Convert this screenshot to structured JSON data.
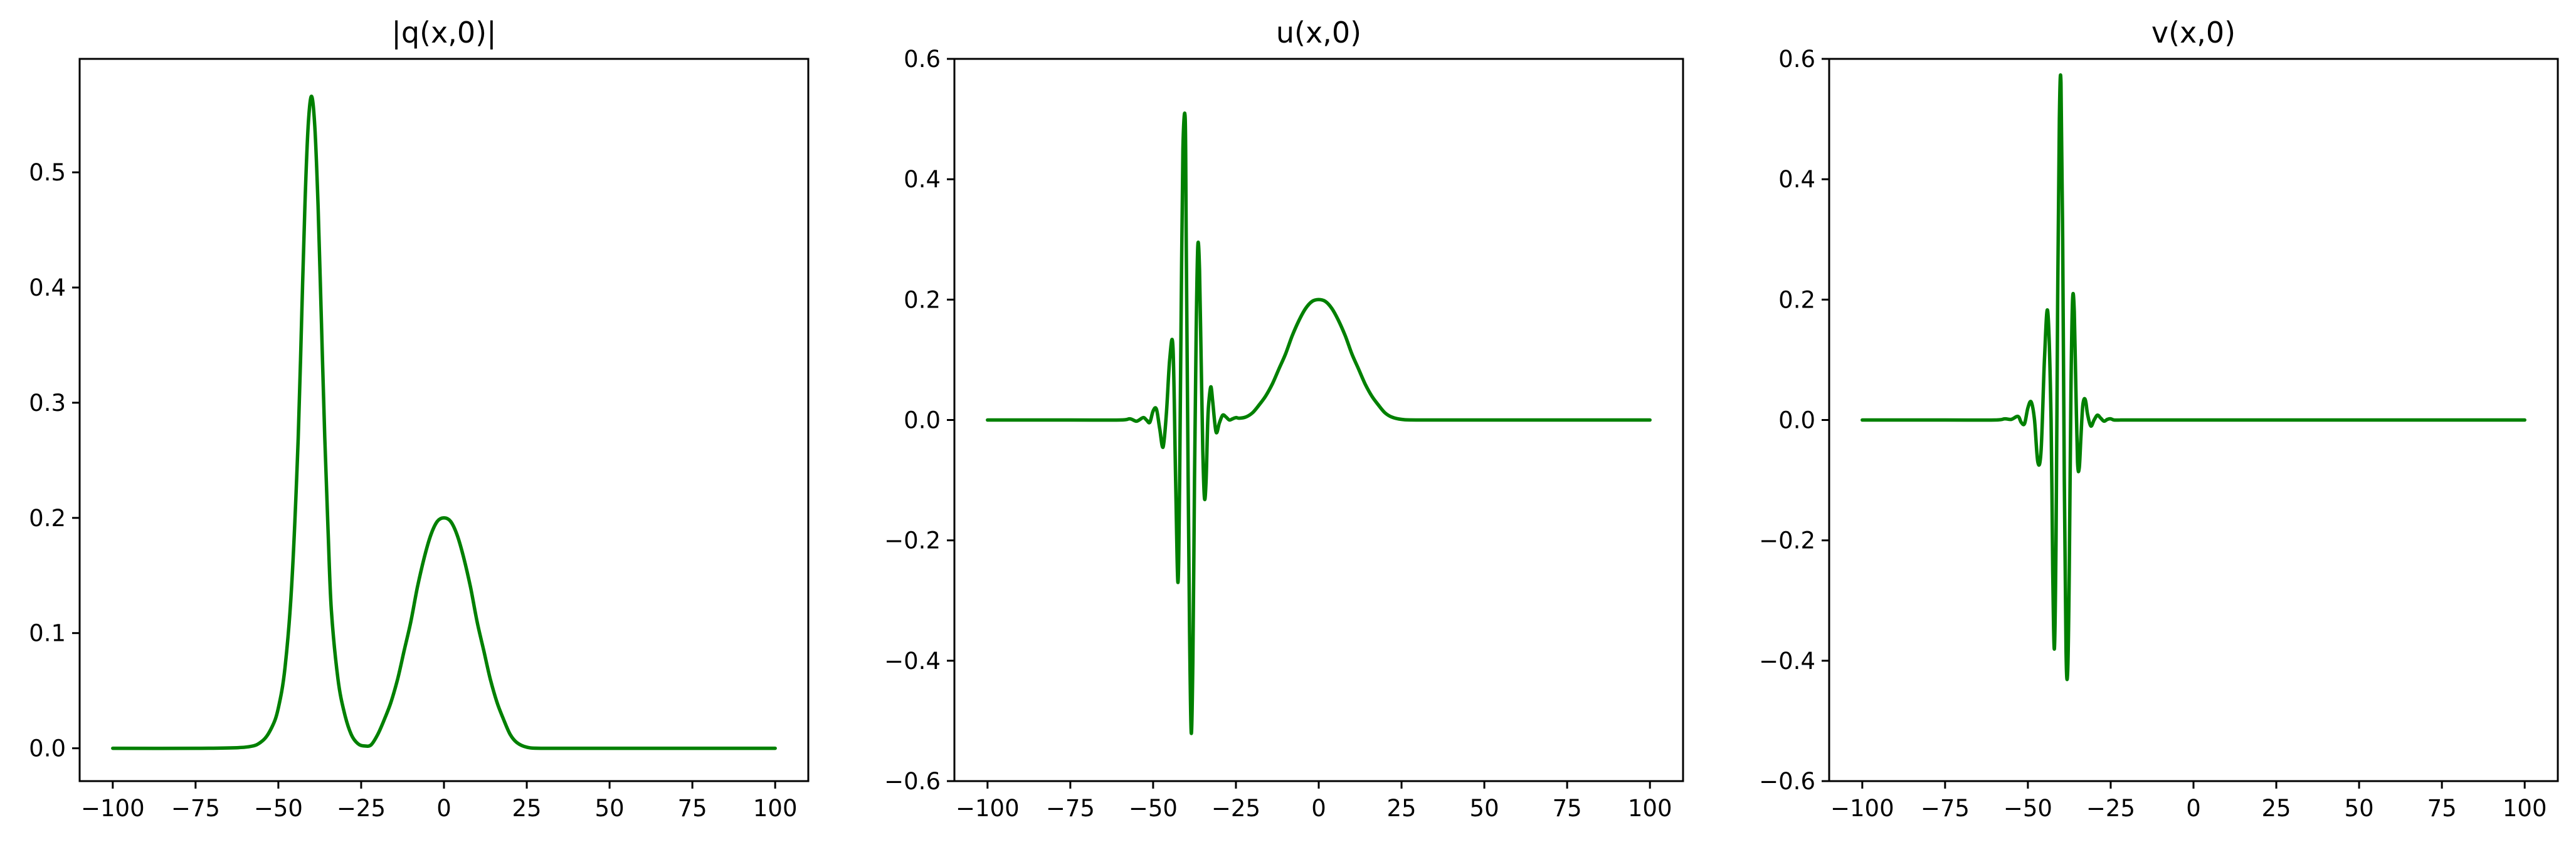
{
  "chart_data": [
    {
      "type": "line",
      "title": "|q(x,0)|",
      "xlabel": "",
      "ylabel": "",
      "xlim": [
        -110,
        110
      ],
      "ylim": [
        -0.0285,
        0.5985
      ],
      "xticks": [
        -100,
        -75,
        -50,
        -25,
        0,
        25,
        50,
        75,
        100
      ],
      "yticks": [
        0.0,
        0.1,
        0.2,
        0.3,
        0.4,
        0.5
      ],
      "grid": false,
      "color": "#008000",
      "series": [
        {
          "x": [
            -100,
            -75,
            -60,
            -55,
            -52,
            -50,
            -48,
            -46,
            -44,
            -43,
            -42,
            -41,
            -40,
            -39,
            -38,
            -37,
            -36,
            -35,
            -34,
            -32,
            -30,
            -28,
            -26,
            -24,
            -22,
            -20,
            -18,
            -16,
            -14,
            -12,
            -10,
            -8,
            -6,
            -4,
            -2,
            0,
            2,
            4,
            6,
            8,
            10,
            12,
            14,
            16,
            18,
            20,
            22,
            25,
            30,
            50,
            75,
            100
          ],
          "y": [
            0.0,
            0.0,
            0.001,
            0.006,
            0.018,
            0.035,
            0.07,
            0.14,
            0.27,
            0.37,
            0.47,
            0.54,
            0.566,
            0.54,
            0.47,
            0.37,
            0.27,
            0.19,
            0.12,
            0.06,
            0.03,
            0.012,
            0.004,
            0.002,
            0.003,
            0.012,
            0.025,
            0.04,
            0.06,
            0.085,
            0.11,
            0.14,
            0.165,
            0.185,
            0.197,
            0.2,
            0.197,
            0.185,
            0.165,
            0.14,
            0.11,
            0.085,
            0.06,
            0.04,
            0.025,
            0.012,
            0.005,
            0.001,
            0.0,
            0.0,
            0.0,
            0.0
          ]
        }
      ]
    },
    {
      "type": "line",
      "title": "u(x,0)",
      "xlabel": "",
      "ylabel": "",
      "xlim": [
        -110,
        110
      ],
      "ylim": [
        -0.6,
        0.6
      ],
      "xticks": [
        -100,
        -75,
        -50,
        -25,
        0,
        25,
        50,
        75,
        100
      ],
      "yticks": [
        -0.6,
        -0.4,
        -0.2,
        0.0,
        0.2,
        0.4,
        0.6
      ],
      "grid": false,
      "color": "#008000",
      "series": [
        {
          "x": [
            -100,
            -75,
            -60,
            -57,
            -55,
            -53,
            -52,
            -51,
            -50,
            -49,
            -48,
            -47,
            -46,
            -45,
            -44,
            -43.2,
            -42.5,
            -42,
            -41.5,
            -41,
            -40.3,
            -40,
            -39.5,
            -39,
            -38.5,
            -38,
            -37.5,
            -37,
            -36.5,
            -36,
            -35.5,
            -35,
            -34.5,
            -34,
            -33.5,
            -33,
            -32.5,
            -32,
            -31,
            -30,
            -29,
            -28,
            -27,
            -26,
            -25,
            -24,
            -22,
            -20,
            -18,
            -16,
            -14,
            -12,
            -10,
            -8,
            -6,
            -4,
            -2,
            0,
            2,
            4,
            6,
            8,
            10,
            12,
            14,
            16,
            18,
            20,
            22,
            25,
            30,
            50,
            75,
            100
          ],
          "y": [
            0.0,
            0.0,
            0.0,
            0.002,
            -0.002,
            0.004,
            0.0,
            -0.004,
            0.015,
            0.018,
            -0.015,
            -0.045,
            0.01,
            0.1,
            0.12,
            -0.1,
            -0.27,
            -0.1,
            0.2,
            0.45,
            0.5,
            0.3,
            -0.05,
            -0.35,
            -0.52,
            -0.4,
            -0.1,
            0.15,
            0.29,
            0.25,
            0.1,
            -0.05,
            -0.13,
            -0.1,
            0.0,
            0.04,
            0.055,
            0.03,
            -0.02,
            -0.005,
            0.008,
            0.005,
            0.0,
            0.002,
            0.004,
            0.003,
            0.005,
            0.012,
            0.025,
            0.04,
            0.06,
            0.085,
            0.11,
            0.14,
            0.165,
            0.185,
            0.197,
            0.2,
            0.197,
            0.185,
            0.165,
            0.14,
            0.11,
            0.085,
            0.06,
            0.04,
            0.025,
            0.012,
            0.005,
            0.001,
            0.0,
            0.0,
            0.0,
            0.0
          ]
        }
      ]
    },
    {
      "type": "line",
      "title": "v(x,0)",
      "xlabel": "",
      "ylabel": "",
      "xlim": [
        -110,
        110
      ],
      "ylim": [
        -0.6,
        0.6
      ],
      "xticks": [
        -100,
        -75,
        -50,
        -25,
        0,
        25,
        50,
        75,
        100
      ],
      "yticks": [
        -0.6,
        -0.4,
        -0.2,
        0.0,
        0.2,
        0.4,
        0.6
      ],
      "grid": false,
      "color": "#008000",
      "series": [
        {
          "x": [
            -100,
            -75,
            -60,
            -57,
            -55,
            -53,
            -52,
            -51,
            -50,
            -49,
            -48,
            -47,
            -46,
            -45,
            -44,
            -43,
            -42.5,
            -42,
            -41.5,
            -41,
            -40.5,
            -40,
            -39.5,
            -39,
            -38.5,
            -38,
            -37.5,
            -37,
            -36.5,
            -36,
            -35.5,
            -35,
            -34.5,
            -34,
            -33.5,
            -33,
            -32.5,
            -32,
            -31,
            -30,
            -29,
            -28,
            -27,
            -26,
            -25,
            -24,
            -22,
            -20,
            0,
            50,
            100
          ],
          "y": [
            0.0,
            0.0,
            0.0,
            0.002,
            0.001,
            0.006,
            -0.004,
            -0.006,
            0.02,
            0.03,
            0.0,
            -0.07,
            -0.05,
            0.1,
            0.18,
            0.0,
            -0.25,
            -0.38,
            -0.2,
            0.2,
            0.5,
            0.56,
            0.3,
            -0.1,
            -0.38,
            -0.42,
            -0.25,
            0.05,
            0.2,
            0.18,
            0.05,
            -0.07,
            -0.08,
            -0.03,
            0.02,
            0.035,
            0.03,
            0.01,
            -0.01,
            0.0,
            0.008,
            0.003,
            -0.002,
            0.001,
            0.002,
            0.0,
            0.0,
            0.0,
            0.0,
            0.0,
            0.0
          ]
        }
      ]
    }
  ]
}
